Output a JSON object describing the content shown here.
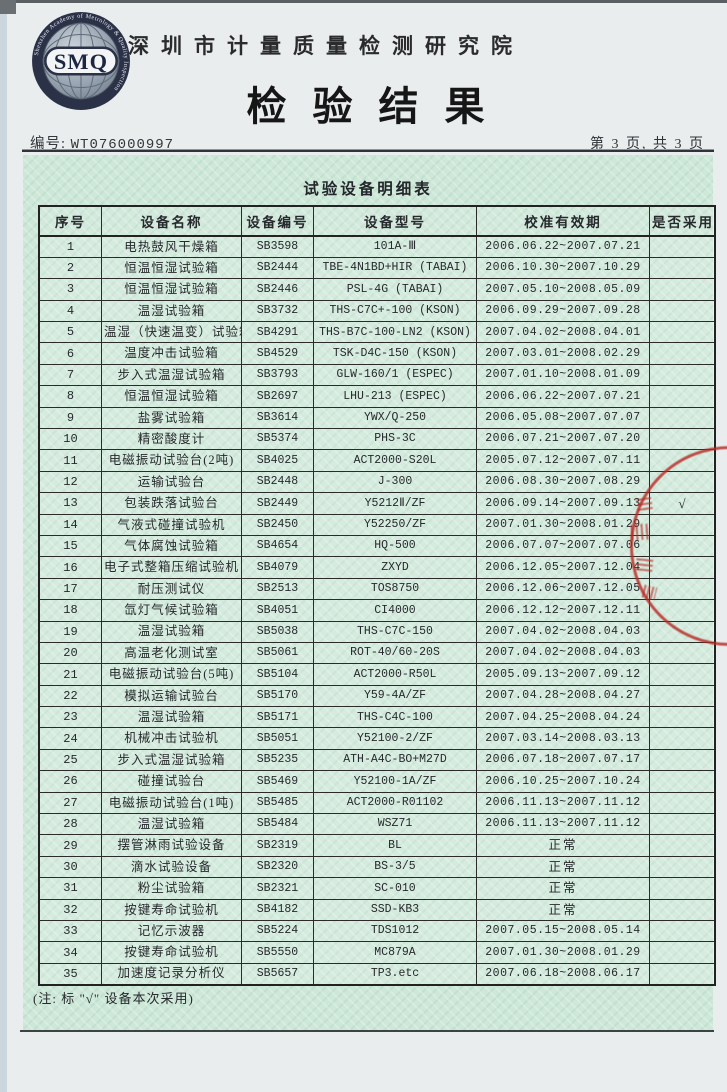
{
  "header": {
    "logo_text": "SMQ",
    "logo_ring_text": "Shenzhen Academy of Metrology & Quality Inspection",
    "institute_name": "深圳市计量质量检测研究院",
    "title": "检验结果",
    "doc_no_label": "编号:",
    "doc_no_value": "WT076000997",
    "page_info": "第 3 页, 共 3 页"
  },
  "table": {
    "title": "试验设备明细表",
    "columns": [
      "序号",
      "设备名称",
      "设备编号",
      "设备型号",
      "校准有效期",
      "是否采用"
    ],
    "rows": [
      [
        "1",
        "电热鼓风干燥箱",
        "SB3598",
        "101A-Ⅲ",
        "2006.06.22~2007.07.21",
        ""
      ],
      [
        "2",
        "恒温恒湿试验箱",
        "SB2444",
        "TBE-4N1BD+HIR (TABAI)",
        "2006.10.30~2007.10.29",
        ""
      ],
      [
        "3",
        "恒温恒湿试验箱",
        "SB2446",
        "PSL-4G (TABAI)",
        "2007.05.10~2008.05.09",
        ""
      ],
      [
        "4",
        "温湿试验箱",
        "SB3732",
        "THS-C7C+-100 (KSON)",
        "2006.09.29~2007.09.28",
        ""
      ],
      [
        "5",
        "温湿（快速温变）试验箱",
        "SB4291",
        "THS-B7C-100-LN2 (KSON)",
        "2007.04.02~2008.04.01",
        ""
      ],
      [
        "6",
        "温度冲击试验箱",
        "SB4529",
        "TSK-D4C-150 (KSON)",
        "2007.03.01~2008.02.29",
        ""
      ],
      [
        "7",
        "步入式温湿试验箱",
        "SB3793",
        "GLW-160/1 (ESPEC)",
        "2007.01.10~2008.01.09",
        ""
      ],
      [
        "8",
        "恒温恒湿试验箱",
        "SB2697",
        "LHU-213 (ESPEC)",
        "2006.06.22~2007.07.21",
        ""
      ],
      [
        "9",
        "盐雾试验箱",
        "SB3614",
        "YWX/Q-250",
        "2006.05.08~2007.07.07",
        ""
      ],
      [
        "10",
        "精密酸度计",
        "SB5374",
        "PHS-3C",
        "2006.07.21~2007.07.20",
        ""
      ],
      [
        "11",
        "电磁振动试验台(2吨)",
        "SB4025",
        "ACT2000-S20L",
        "2005.07.12~2007.07.11",
        ""
      ],
      [
        "12",
        "运输试验台",
        "SB2448",
        "J-300",
        "2006.08.30~2007.08.29",
        ""
      ],
      [
        "13",
        "包装跌落试验台",
        "SB2449",
        "Y5212Ⅱ/ZF",
        "2006.09.14~2007.09.13",
        "√"
      ],
      [
        "14",
        "气液式碰撞试验机",
        "SB2450",
        "Y52250/ZF",
        "2007.01.30~2008.01.29",
        ""
      ],
      [
        "15",
        "气体腐蚀试验箱",
        "SB4654",
        "HQ-500",
        "2006.07.07~2007.07.06",
        ""
      ],
      [
        "16",
        "电子式整箱压缩试验机",
        "SB4079",
        "ZXYD",
        "2006.12.05~2007.12.04",
        ""
      ],
      [
        "17",
        "耐压测试仪",
        "SB2513",
        "TOS8750",
        "2006.12.06~2007.12.05",
        ""
      ],
      [
        "18",
        "氙灯气候试验箱",
        "SB4051",
        "CI4000",
        "2006.12.12~2007.12.11",
        ""
      ],
      [
        "19",
        "温湿试验箱",
        "SB5038",
        "THS-C7C-150",
        "2007.04.02~2008.04.03",
        ""
      ],
      [
        "20",
        "高温老化测试室",
        "SB5061",
        "ROT-40/60-20S",
        "2007.04.02~2008.04.03",
        ""
      ],
      [
        "21",
        "电磁振动试验台(5吨)",
        "SB5104",
        "ACT2000-R50L",
        "2005.09.13~2007.09.12",
        ""
      ],
      [
        "22",
        "模拟运输试验台",
        "SB5170",
        "Y59-4A/ZF",
        "2007.04.28~2008.04.27",
        ""
      ],
      [
        "23",
        "温湿试验箱",
        "SB5171",
        "THS-C4C-100",
        "2007.04.25~2008.04.24",
        ""
      ],
      [
        "24",
        "机械冲击试验机",
        "SB5051",
        "Y52100-2/ZF",
        "2007.03.14~2008.03.13",
        ""
      ],
      [
        "25",
        "步入式温湿试验箱",
        "SB5235",
        "ATH-A4C-BO+M27D",
        "2006.07.18~2007.07.17",
        ""
      ],
      [
        "26",
        "碰撞试验台",
        "SB5469",
        "Y52100-1A/ZF",
        "2006.10.25~2007.10.24",
        ""
      ],
      [
        "27",
        "电磁振动试验台(1吨)",
        "SB5485",
        "ACT2000-R01102",
        "2006.11.13~2007.11.12",
        ""
      ],
      [
        "28",
        "温湿试验箱",
        "SB5484",
        "WSZ71",
        "2006.11.13~2007.11.12",
        ""
      ],
      [
        "29",
        "摆管淋雨试验设备",
        "SB2319",
        "BL",
        "正常",
        ""
      ],
      [
        "30",
        "滴水试验设备",
        "SB2320",
        "BS-3/5",
        "正常",
        ""
      ],
      [
        "31",
        "粉尘试验箱",
        "SB2321",
        "SC-010",
        "正常",
        ""
      ],
      [
        "32",
        "按键寿命试验机",
        "SB4182",
        "SSD-KB3",
        "正常",
        ""
      ],
      [
        "33",
        "记忆示波器",
        "SB5224",
        "TDS1012",
        "2007.05.15~2008.05.14",
        ""
      ],
      [
        "34",
        "按键寿命试验机",
        "SB5550",
        "MC879A",
        "2007.01.30~2008.01.29",
        ""
      ],
      [
        "35",
        "加速度记录分析仪",
        "SB5657",
        "TP3.etc",
        "2007.06.18~2008.06.17",
        ""
      ]
    ]
  },
  "footer": {
    "note": "(注: 标 \"√\" 设备本次采用)"
  },
  "stamp": {
    "color": "#b62822",
    "adopted_mark": "√"
  },
  "colors": {
    "panel_green": "#cde7d8",
    "page_grey": "#e9edee",
    "border_dark": "#222222"
  }
}
